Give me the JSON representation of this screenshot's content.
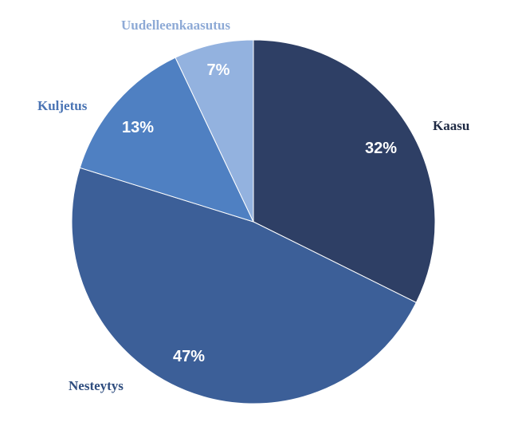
{
  "chart_data": {
    "type": "pie",
    "slices": [
      {
        "label": "Kaasu",
        "value": 32,
        "value_label": "32%",
        "color": "#2e3f65",
        "label_color": "#1f2a44"
      },
      {
        "label": "Nesteytys",
        "value": 47,
        "value_label": "47%",
        "color": "#3c5f98",
        "label_color": "#2f4d7f"
      },
      {
        "label": "Kuljetus",
        "value": 13,
        "value_label": "13%",
        "color": "#4f80c2",
        "label_color": "#4a74b4"
      },
      {
        "label": "Uudelleenkaasutus",
        "value": 7,
        "value_label": "7%",
        "color": "#93b2df",
        "label_color": "#8eaad6"
      }
    ],
    "start_angle_deg": 0,
    "direction": "clockwise",
    "legend": "none"
  }
}
